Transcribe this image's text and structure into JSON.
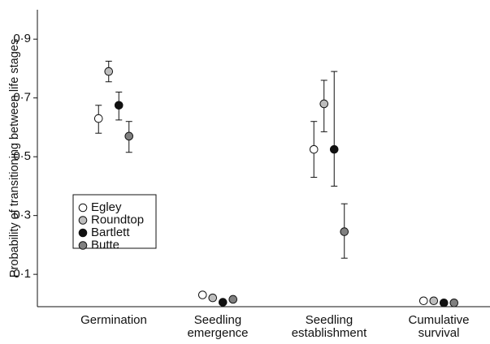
{
  "chart_data": {
    "type": "dot",
    "y_label": "Probability of transitioning between life stages",
    "categories": [
      [
        "Germination"
      ],
      [
        "Seedling",
        "emergence"
      ],
      [
        "Seedling",
        "establishment"
      ],
      [
        "Cumulative",
        "survival"
      ]
    ],
    "ylim": [
      -0.01,
      1.0
    ],
    "yticks": [
      {
        "value": 0.1,
        "label": "0·1"
      },
      {
        "value": 0.3,
        "label": "0·3"
      },
      {
        "value": 0.5,
        "label": "0·5"
      },
      {
        "value": 0.7,
        "label": "0·7"
      },
      {
        "value": 0.9,
        "label": "0·9"
      }
    ],
    "series": [
      {
        "name": "Egley",
        "color": "#ffffff",
        "values": [
          0.63,
          0.03,
          0.525,
          0.01
        ],
        "lower": [
          0.58,
          0.022,
          0.43,
          0.006
        ],
        "upper": [
          0.675,
          0.038,
          0.62,
          0.014
        ]
      },
      {
        "name": "Roundtop",
        "color": "#bdbdbd",
        "values": [
          0.79,
          0.02,
          0.68,
          0.01
        ],
        "lower": [
          0.755,
          0.014,
          0.585,
          0.006
        ],
        "upper": [
          0.825,
          0.026,
          0.76,
          0.014
        ]
      },
      {
        "name": "Bartlett",
        "color": "#111111",
        "values": [
          0.675,
          0.005,
          0.525,
          0.003
        ],
        "lower": [
          0.625,
          0.002,
          0.4,
          0.001
        ],
        "upper": [
          0.72,
          0.008,
          0.79,
          0.005
        ]
      },
      {
        "name": "Butte",
        "color": "#808080",
        "values": [
          0.57,
          0.015,
          0.245,
          0.003
        ],
        "lower": [
          0.515,
          0.01,
          0.155,
          0.001
        ],
        "upper": [
          0.62,
          0.02,
          0.34,
          0.005
        ]
      }
    ]
  }
}
